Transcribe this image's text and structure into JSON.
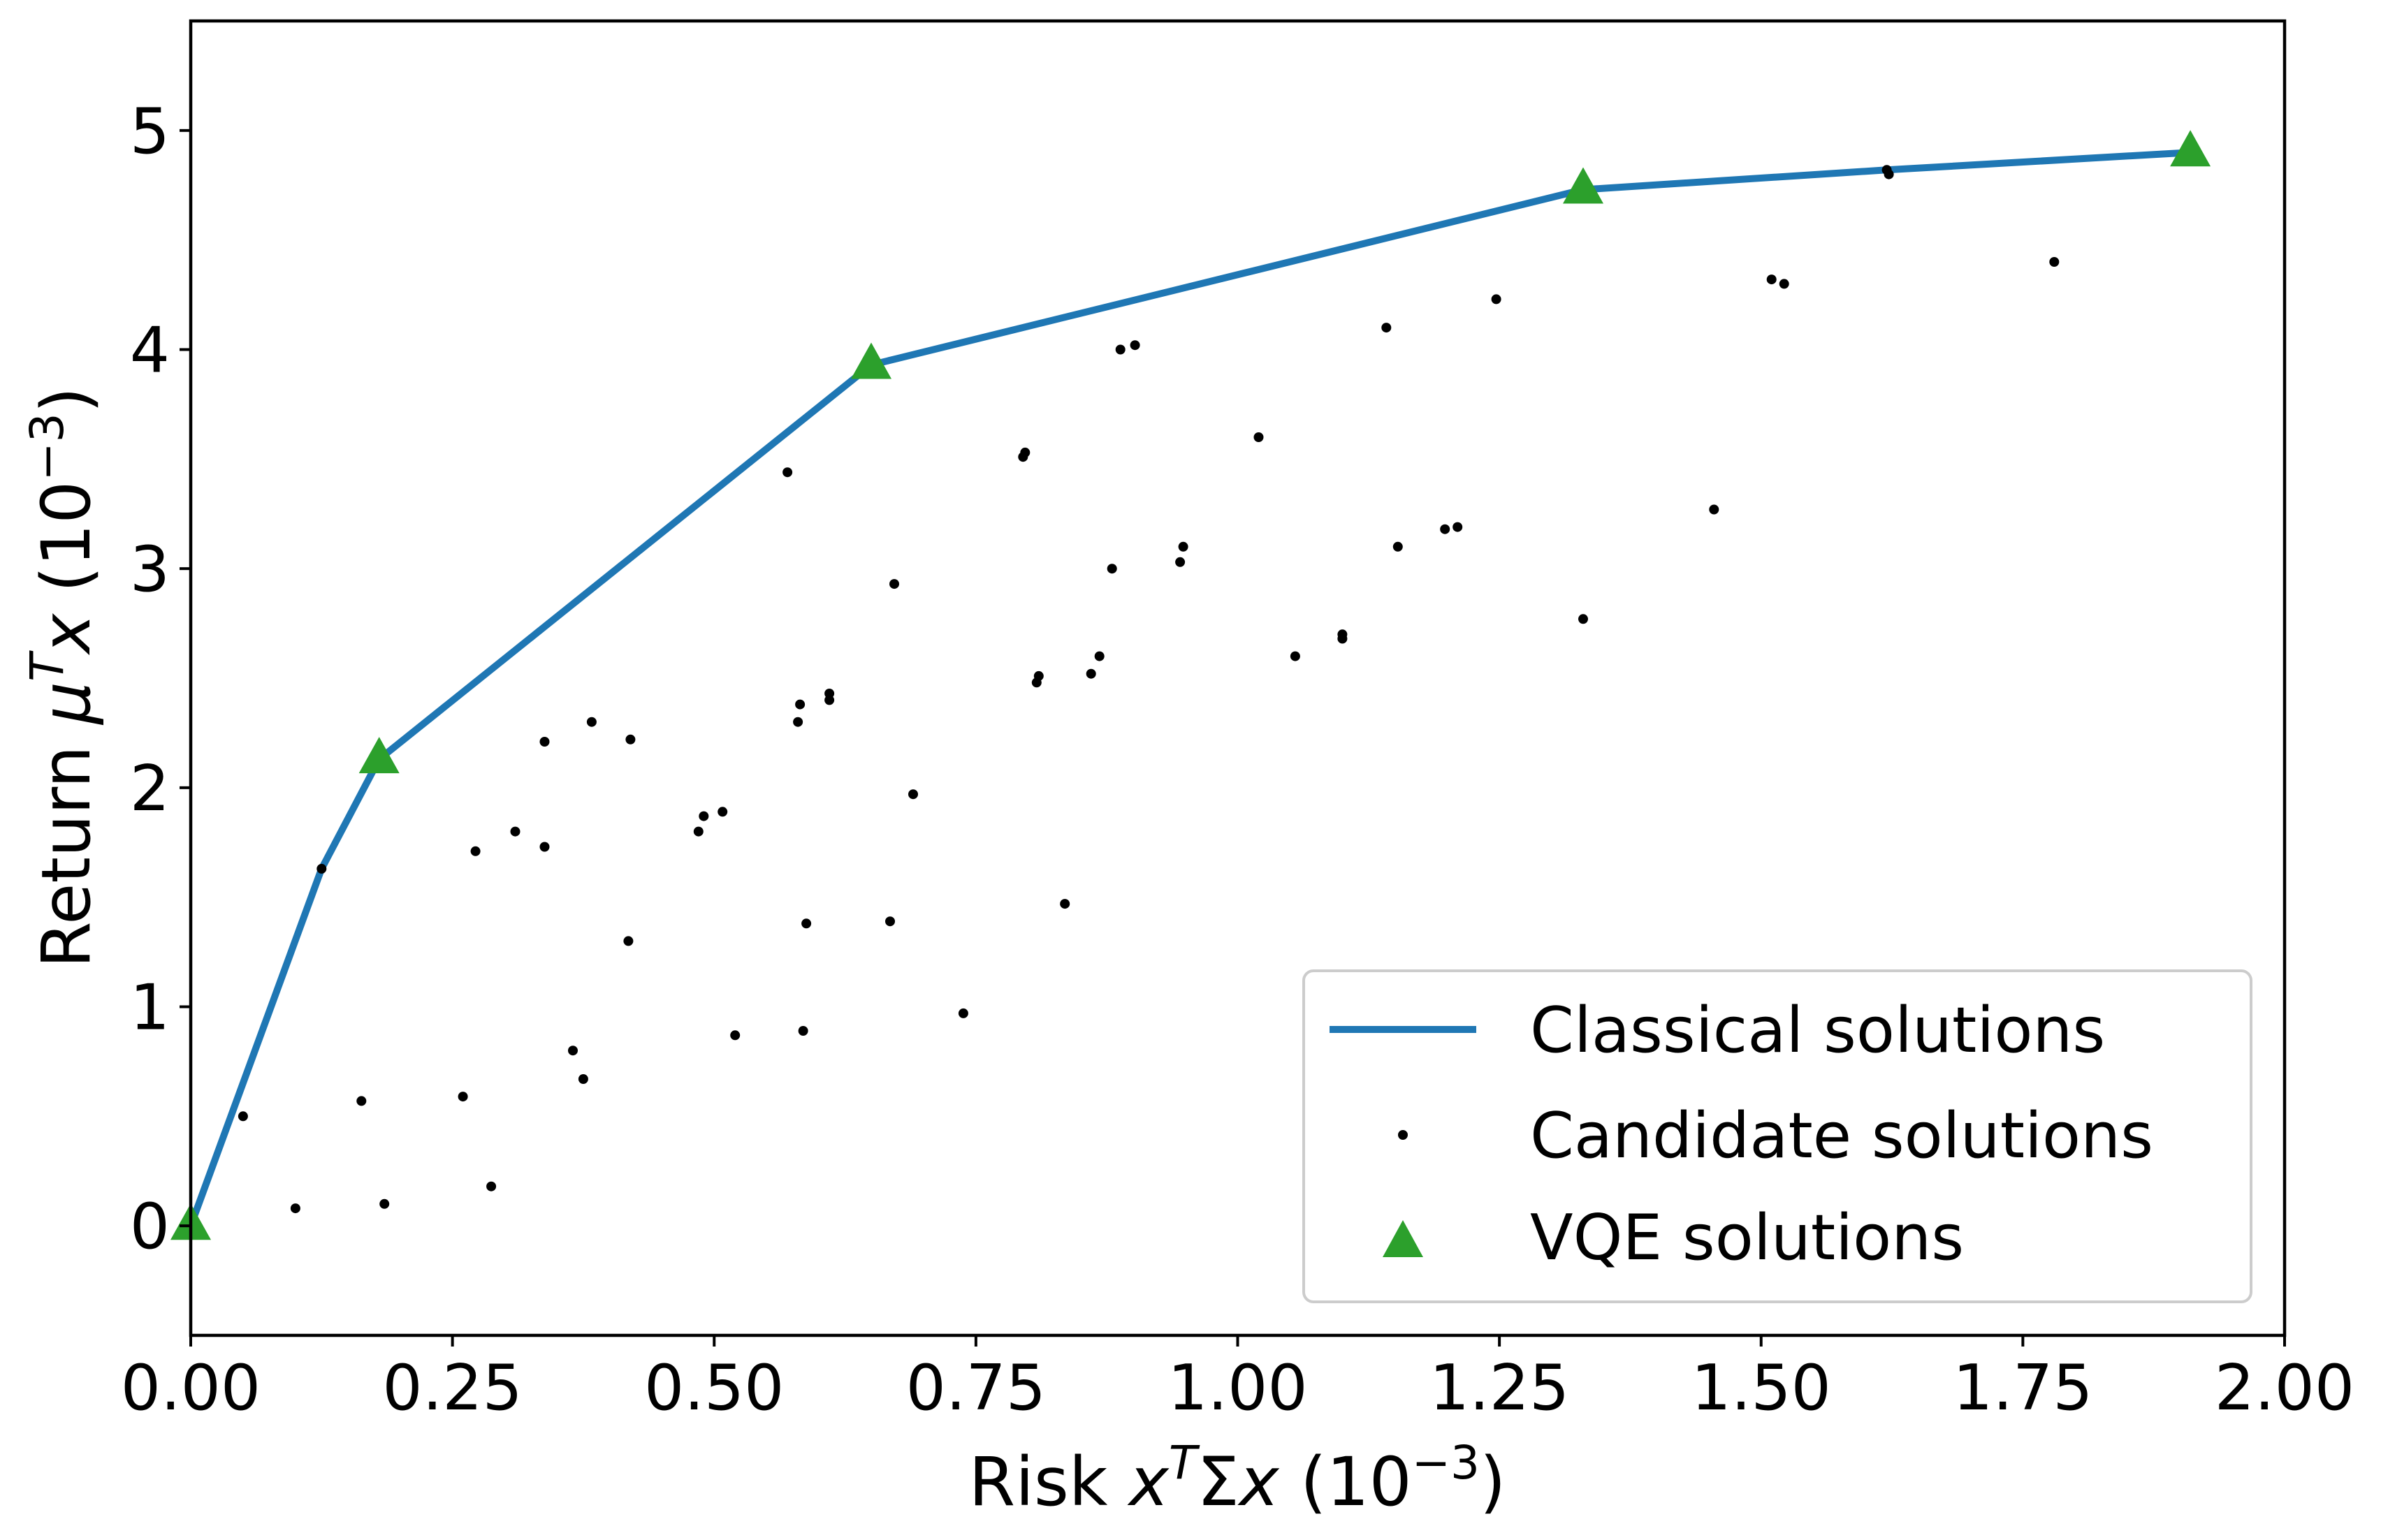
{
  "chart_data": {
    "type": "scatter",
    "xlabel": {
      "prefix": "Risk ",
      "var1": "x",
      "sup1": "T",
      "mid": "Σ",
      "var2": "x",
      "unit_open": " (10",
      "unit_sup": "−3",
      "unit_close": ")"
    },
    "ylabel": {
      "prefix": "Return ",
      "var1": "μ",
      "sup1": "T",
      "var2": "x",
      "unit_open": "  (10",
      "unit_sup": "−3",
      "unit_close": ")"
    },
    "xlim": [
      0.0,
      2.0
    ],
    "ylim": [
      -0.5,
      5.5
    ],
    "xticks": [
      "0.00",
      "0.25",
      "0.50",
      "0.75",
      "1.00",
      "1.25",
      "1.50",
      "1.75",
      "2.00"
    ],
    "yticks": [
      "0",
      "1",
      "2",
      "3",
      "4",
      "5"
    ],
    "grid": false,
    "legend_position": "lower-right",
    "colors": {
      "classical": "#1f77b4",
      "candidate": "#000000",
      "vqe": "#2ca02c"
    },
    "series": [
      {
        "name": "Classical solutions",
        "kind": "line",
        "x": [
          0.0,
          0.125,
          0.18,
          0.65,
          1.33,
          1.62,
          1.91
        ],
        "y": [
          0.0,
          1.63,
          2.13,
          3.93,
          4.73,
          4.82,
          4.9
        ]
      },
      {
        "name": "Candidate solutions",
        "kind": "scatter",
        "x": [
          0.05,
          0.1,
          0.125,
          0.163,
          0.18,
          0.185,
          0.26,
          0.272,
          0.287,
          0.31,
          0.338,
          0.338,
          0.365,
          0.375,
          0.383,
          0.418,
          0.42,
          0.485,
          0.49,
          0.508,
          0.52,
          0.57,
          0.58,
          0.582,
          0.585,
          0.588,
          0.61,
          0.61,
          0.65,
          0.668,
          0.672,
          0.69,
          0.738,
          0.795,
          0.797,
          0.808,
          0.81,
          0.835,
          0.86,
          0.868,
          0.88,
          0.888,
          0.902,
          0.945,
          0.948,
          1.02,
          1.055,
          1.1,
          1.1,
          1.142,
          1.153,
          1.198,
          1.21,
          1.247,
          1.33,
          1.33,
          1.455,
          1.51,
          1.522,
          1.62,
          1.622,
          1.78
        ],
        "y": [
          0.5,
          0.08,
          1.63,
          0.57,
          2.13,
          0.1,
          0.59,
          1.71,
          0.18,
          1.8,
          2.21,
          1.73,
          0.8,
          0.67,
          2.3,
          1.3,
          2.22,
          1.8,
          1.87,
          1.89,
          0.87,
          3.44,
          2.3,
          2.38,
          0.89,
          1.38,
          2.4,
          2.43,
          3.93,
          1.39,
          2.93,
          1.97,
          0.97,
          3.51,
          3.53,
          2.48,
          2.51,
          1.47,
          2.52,
          2.6,
          3.0,
          4.0,
          4.02,
          3.03,
          3.1,
          3.6,
          2.6,
          2.68,
          2.7,
          4.1,
          3.1,
          3.18,
          3.19,
          4.23,
          2.77,
          4.73,
          3.27,
          4.32,
          4.3,
          4.82,
          4.8,
          4.4
        ]
      },
      {
        "name": "VQE solutions",
        "kind": "marker",
        "x": [
          0.0,
          0.18,
          0.65,
          1.33,
          1.91
        ],
        "y": [
          0.0,
          2.13,
          3.93,
          4.73,
          4.9
        ]
      }
    ]
  }
}
